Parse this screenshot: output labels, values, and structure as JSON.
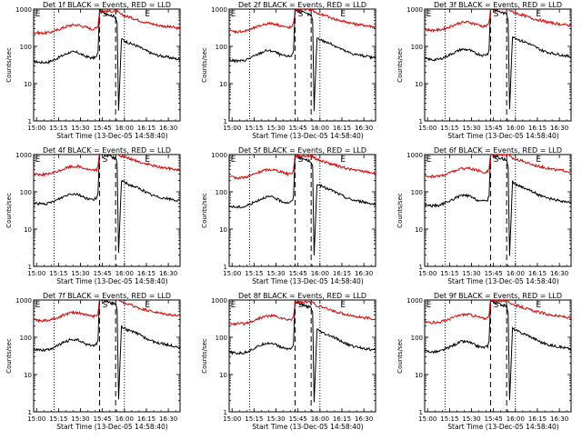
{
  "panel_labels": [
    "Det 1f",
    "Det 2f",
    "Det 3f",
    "Det 4f",
    "Det 5f",
    "Det 6f",
    "Det 7f",
    "Det 8f",
    "Det 9f"
  ],
  "colors": {
    "events": "#000000",
    "lld": "#e00000",
    "axes": "#000000"
  },
  "chart_data": {
    "type": "line",
    "title_suffix": "BLACK = Events, RED = LLD",
    "xlabel": "Start Time (13-Dec-05 14:58:40)",
    "ylabel": "Counts/sec",
    "xticks": [
      "15:00",
      "15:15",
      "15:30",
      "15:45",
      "16:00",
      "16:15",
      "16:30"
    ],
    "yticks": [
      "1",
      "10",
      "100",
      "1000"
    ],
    "xlim_minutes": [
      0,
      100
    ],
    "ylim": [
      1,
      1000
    ],
    "yscale": "log",
    "grid": false,
    "vlines": [
      {
        "t": 14,
        "style": "dotted"
      },
      {
        "t": 45,
        "style": "dashed"
      },
      {
        "t": 56,
        "style": "dashed"
      },
      {
        "t": 62,
        "style": "dotted"
      }
    ],
    "markers": [
      {
        "label": "E",
        "t": 1
      },
      {
        "label": "S",
        "t": 47
      },
      {
        "label": "E",
        "t": 76
      }
    ],
    "series": [
      {
        "name": "Events",
        "x": [
          0,
          5,
          10,
          15,
          20,
          25,
          30,
          35,
          40,
          43,
          44,
          45,
          56,
          57,
          58,
          60,
          65,
          70,
          75,
          80,
          85,
          90,
          95,
          100
        ],
        "y": [
          45,
          42,
          43,
          52,
          65,
          80,
          78,
          62,
          55,
          60,
          80,
          1000,
          700,
          500,
          2,
          180,
          140,
          120,
          95,
          75,
          65,
          60,
          55,
          50
        ]
      },
      {
        "name": "LLD",
        "x": [
          0,
          5,
          10,
          15,
          20,
          25,
          30,
          35,
          40,
          43,
          44,
          45,
          56,
          57,
          58,
          60,
          65,
          70,
          75,
          80,
          85,
          90,
          95,
          100
        ],
        "y": [
          270,
          260,
          265,
          300,
          360,
          420,
          430,
          380,
          330,
          350,
          420,
          1000,
          1000,
          1000,
          900,
          800,
          700,
          600,
          520,
          470,
          420,
          390,
          370,
          340
        ]
      }
    ]
  }
}
